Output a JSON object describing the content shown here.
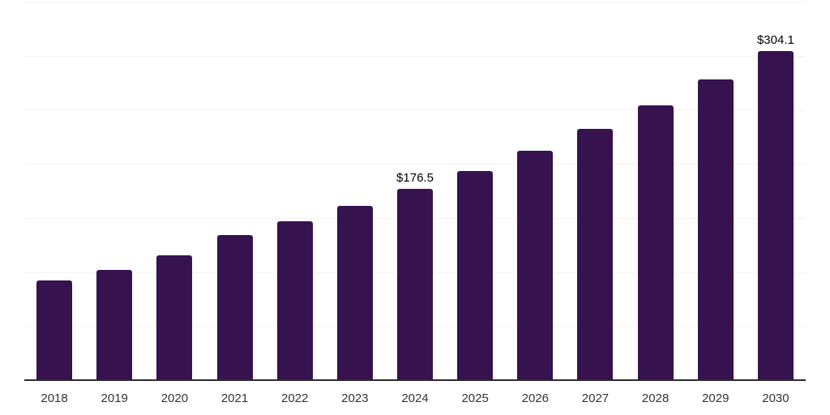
{
  "chart_data": {
    "type": "bar",
    "title": "",
    "categories": [
      "2018",
      "2019",
      "2020",
      "2021",
      "2022",
      "2023",
      "2024",
      "2025",
      "2026",
      "2027",
      "2028",
      "2029",
      "2030"
    ],
    "values": [
      91.9,
      101.9,
      115.4,
      134.2,
      146.9,
      161.1,
      176.5,
      193.3,
      212.4,
      232.0,
      254.3,
      277.9,
      304.1
    ],
    "data_labels": [
      {
        "category": "2024",
        "text": "$176.5"
      },
      {
        "category": "2030",
        "text": "$304.1"
      }
    ],
    "xlabel": "",
    "ylabel": "",
    "ylim": [
      0,
      350
    ],
    "gridline_step": 50,
    "grid": true,
    "y_axis_labels_shown": false,
    "legend_position": "none"
  },
  "styles": {
    "background_color": "#ffffff",
    "bar_color": "#36124e",
    "gridline_color": "#f2f2f2",
    "axis_line_color": "#2b2b2b",
    "x_label_color": "#333333",
    "data_label_color": "#000000"
  }
}
